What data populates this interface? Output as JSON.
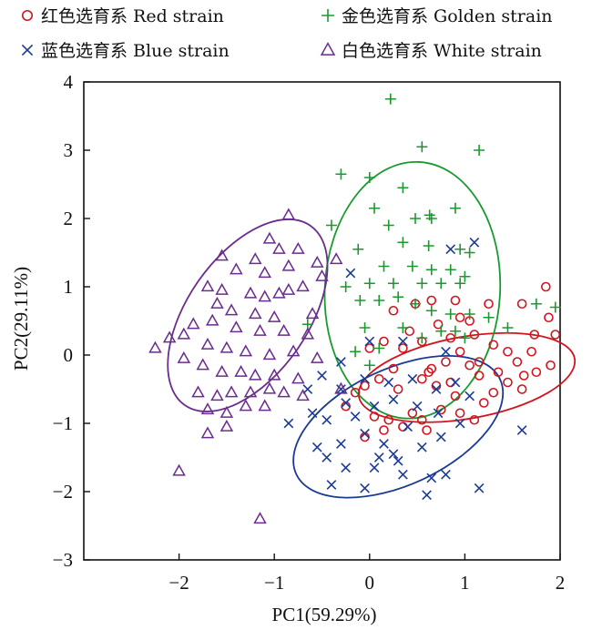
{
  "chart_data": {
    "type": "scatter",
    "xlabel": "PC1(59.29%)",
    "ylabel": "PC2(29.11%)",
    "xlim": [
      -3.0,
      2.0
    ],
    "ylim": [
      -3,
      4
    ],
    "x_ticks": [
      "−2",
      "−1",
      "0",
      "1",
      "2"
    ],
    "x_tick_values": [
      -2,
      -1,
      0,
      1,
      2
    ],
    "y_ticks": [
      "−3",
      "−2",
      "−1",
      "0",
      "1",
      "2",
      "3",
      "4"
    ],
    "y_tick_values": [
      -3,
      -2,
      -1,
      0,
      1,
      2,
      3,
      4
    ],
    "grid": false,
    "legend_position": "top",
    "series": [
      {
        "name": "红色选育系 Red strain",
        "marker": "circle",
        "color": "#d2141e",
        "ellipse": {
          "cx": 1.02,
          "cy": -0.33,
          "rx": 1.15,
          "ry": 0.6,
          "angle_deg": 10
        },
        "points": [
          [
            1.85,
            1.0
          ],
          [
            1.95,
            0.3
          ],
          [
            1.6,
            0.75
          ],
          [
            1.73,
            0.3
          ],
          [
            1.62,
            -0.3
          ],
          [
            1.25,
            0.75
          ],
          [
            0.9,
            0.8
          ],
          [
            0.95,
            0.55
          ],
          [
            1.05,
            0.5
          ],
          [
            0.72,
            0.45
          ],
          [
            0.65,
            0.8
          ],
          [
            0.48,
            0.75
          ],
          [
            0.42,
            0.35
          ],
          [
            0.25,
            0.65
          ],
          [
            0.15,
            0.2
          ],
          [
            0.35,
            0.1
          ],
          [
            0.55,
            0.2
          ],
          [
            0.85,
            0.25
          ],
          [
            1.1,
            0.3
          ],
          [
            1.3,
            0.15
          ],
          [
            1.45,
            0.05
          ],
          [
            1.55,
            -0.1
          ],
          [
            1.75,
            -0.25
          ],
          [
            1.9,
            -0.15
          ],
          [
            1.7,
            0.05
          ],
          [
            0.95,
            0.05
          ],
          [
            0.8,
            -0.1
          ],
          [
            0.65,
            -0.2
          ],
          [
            1.05,
            -0.15
          ],
          [
            1.15,
            -0.3
          ],
          [
            1.35,
            -0.25
          ],
          [
            1.45,
            -0.4
          ],
          [
            1.3,
            -0.55
          ],
          [
            1.2,
            -0.7
          ],
          [
            0.9,
            -0.6
          ],
          [
            0.7,
            -0.45
          ],
          [
            0.55,
            -0.35
          ],
          [
            0.3,
            -0.5
          ],
          [
            0.1,
            -0.35
          ],
          [
            -0.05,
            -0.45
          ],
          [
            -0.15,
            -0.55
          ],
          [
            -0.25,
            -0.75
          ],
          [
            0.05,
            -0.9
          ],
          [
            0.2,
            -0.95
          ],
          [
            0.35,
            -1.05
          ],
          [
            0.55,
            -0.95
          ],
          [
            0.75,
            -0.8
          ],
          [
            0.95,
            -0.85
          ],
          [
            1.1,
            -0.95
          ],
          [
            -0.05,
            -1.2
          ],
          [
            0.15,
            -1.1
          ],
          [
            0.62,
            -0.25
          ],
          [
            1.15,
            -0.1
          ],
          [
            0.45,
            -0.85
          ],
          [
            0.85,
            -0.4
          ],
          [
            1.88,
            0.55
          ],
          [
            0.0,
            0.1
          ],
          [
            0.25,
            -0.2
          ],
          [
            0.6,
            -1.1
          ],
          [
            1.6,
            -0.5
          ]
        ]
      },
      {
        "name": "金色选育系 Golden strain",
        "marker": "plus",
        "color": "#1a9a2e",
        "ellipse": {
          "cx": 0.45,
          "cy": 0.95,
          "rx": 0.92,
          "ry": 1.88,
          "angle_deg": -3
        },
        "points": [
          [
            0.22,
            3.75
          ],
          [
            0.55,
            3.05
          ],
          [
            1.15,
            3.0
          ],
          [
            -0.3,
            2.65
          ],
          [
            0.0,
            2.6
          ],
          [
            0.35,
            2.45
          ],
          [
            0.05,
            2.15
          ],
          [
            0.63,
            2.05
          ],
          [
            0.9,
            2.15
          ],
          [
            0.65,
            2.0
          ],
          [
            0.48,
            2.0
          ],
          [
            -0.4,
            1.9
          ],
          [
            0.2,
            1.9
          ],
          [
            0.35,
            1.65
          ],
          [
            0.62,
            1.6
          ],
          [
            0.95,
            1.55
          ],
          [
            1.05,
            1.5
          ],
          [
            -0.12,
            1.55
          ],
          [
            0.15,
            1.3
          ],
          [
            0.45,
            1.3
          ],
          [
            0.65,
            1.25
          ],
          [
            0.85,
            1.25
          ],
          [
            1.0,
            1.15
          ],
          [
            -0.25,
            1.0
          ],
          [
            0.0,
            1.05
          ],
          [
            0.25,
            1.05
          ],
          [
            0.55,
            1.05
          ],
          [
            0.75,
            1.05
          ],
          [
            0.95,
            1.05
          ],
          [
            -0.1,
            0.8
          ],
          [
            0.1,
            0.8
          ],
          [
            0.3,
            0.85
          ],
          [
            0.48,
            0.75
          ],
          [
            0.65,
            0.65
          ],
          [
            0.85,
            0.6
          ],
          [
            1.05,
            0.6
          ],
          [
            1.25,
            0.55
          ],
          [
            1.95,
            0.7
          ],
          [
            -0.65,
            0.45
          ],
          [
            -0.05,
            0.4
          ],
          [
            0.35,
            0.4
          ],
          [
            0.75,
            0.35
          ],
          [
            0.55,
            0.25
          ],
          [
            0.1,
            0.1
          ],
          [
            0.0,
            -0.15
          ],
          [
            -0.15,
            0.05
          ],
          [
            1.45,
            0.4
          ],
          [
            1.75,
            0.75
          ],
          [
            0.9,
            0.35
          ],
          [
            1.0,
            0.25
          ]
        ]
      },
      {
        "name": "蓝色选育系 Blue strain",
        "marker": "cross",
        "color": "#1a3a95",
        "ellipse": {
          "cx": 0.3,
          "cy": -1.05,
          "rx": 1.18,
          "ry": 0.85,
          "angle_deg": 25
        },
        "points": [
          [
            1.1,
            1.65
          ],
          [
            0.85,
            1.55
          ],
          [
            -0.2,
            1.2
          ],
          [
            0.0,
            0.2
          ],
          [
            0.35,
            0.2
          ],
          [
            0.8,
            0.05
          ],
          [
            -0.3,
            -0.1
          ],
          [
            -0.5,
            -0.3
          ],
          [
            -0.3,
            -0.5
          ],
          [
            -0.05,
            -0.35
          ],
          [
            0.2,
            -0.4
          ],
          [
            0.45,
            -0.35
          ],
          [
            0.7,
            -0.5
          ],
          [
            0.9,
            -0.4
          ],
          [
            1.05,
            -0.6
          ],
          [
            -0.85,
            -1.0
          ],
          [
            -0.6,
            -0.85
          ],
          [
            -0.45,
            -0.95
          ],
          [
            -0.25,
            -0.7
          ],
          [
            -0.15,
            -0.9
          ],
          [
            0.05,
            -0.75
          ],
          [
            0.25,
            -0.65
          ],
          [
            0.5,
            -0.75
          ],
          [
            0.72,
            -0.85
          ],
          [
            0.95,
            -1.0
          ],
          [
            -0.55,
            -1.35
          ],
          [
            -0.3,
            -1.3
          ],
          [
            -0.05,
            -1.15
          ],
          [
            0.15,
            -1.3
          ],
          [
            0.25,
            -1.45
          ],
          [
            0.3,
            -1.55
          ],
          [
            0.55,
            -1.35
          ],
          [
            0.75,
            -1.2
          ],
          [
            -0.45,
            -1.5
          ],
          [
            -0.25,
            -1.65
          ],
          [
            0.05,
            -1.65
          ],
          [
            0.35,
            -1.75
          ],
          [
            0.65,
            -1.8
          ],
          [
            0.8,
            -1.75
          ],
          [
            -0.4,
            -1.9
          ],
          [
            -0.05,
            -1.95
          ],
          [
            0.6,
            -2.05
          ],
          [
            1.15,
            -1.95
          ],
          [
            1.6,
            -1.1
          ],
          [
            0.4,
            -1.05
          ],
          [
            0.1,
            -1.5
          ],
          [
            -0.65,
            -0.5
          ]
        ]
      },
      {
        "name": "白色选育系 White strain",
        "marker": "triangle",
        "color": "#6a2c8e",
        "ellipse": {
          "cx": -1.28,
          "cy": 0.58,
          "rx": 1.15,
          "ry": 0.88,
          "angle_deg": 55
        },
        "points": [
          [
            -0.85,
            2.05
          ],
          [
            -1.05,
            1.7
          ],
          [
            -0.95,
            1.55
          ],
          [
            -0.55,
            1.35
          ],
          [
            -1.55,
            1.45
          ],
          [
            -1.2,
            1.4
          ],
          [
            -0.35,
            1.4
          ],
          [
            -0.75,
            1.55
          ],
          [
            -1.4,
            1.25
          ],
          [
            -1.1,
            1.2
          ],
          [
            -0.85,
            1.3
          ],
          [
            -0.5,
            1.15
          ],
          [
            -1.7,
            1.0
          ],
          [
            -1.55,
            0.95
          ],
          [
            -1.25,
            0.9
          ],
          [
            -1.1,
            0.85
          ],
          [
            -0.95,
            0.9
          ],
          [
            -0.7,
            1.0
          ],
          [
            -0.85,
            0.95
          ],
          [
            -1.6,
            0.75
          ],
          [
            -1.45,
            0.65
          ],
          [
            -1.2,
            0.6
          ],
          [
            -1.0,
            0.55
          ],
          [
            -0.6,
            0.6
          ],
          [
            -1.85,
            0.45
          ],
          [
            -1.65,
            0.5
          ],
          [
            -1.4,
            0.4
          ],
          [
            -1.15,
            0.35
          ],
          [
            -0.9,
            0.35
          ],
          [
            -0.65,
            0.3
          ],
          [
            -2.1,
            0.25
          ],
          [
            -1.95,
            0.3
          ],
          [
            -1.7,
            0.15
          ],
          [
            -1.5,
            0.1
          ],
          [
            -1.3,
            0.05
          ],
          [
            -1.05,
            0.0
          ],
          [
            -0.8,
            0.05
          ],
          [
            -0.55,
            -0.05
          ],
          [
            -1.95,
            -0.05
          ],
          [
            -1.75,
            -0.15
          ],
          [
            -1.55,
            -0.25
          ],
          [
            -1.35,
            -0.25
          ],
          [
            -1.2,
            -0.3
          ],
          [
            -1.0,
            -0.3
          ],
          [
            -0.75,
            -0.35
          ],
          [
            -1.8,
            -0.55
          ],
          [
            -1.6,
            -0.6
          ],
          [
            -1.45,
            -0.55
          ],
          [
            -1.25,
            -0.55
          ],
          [
            -1.05,
            -0.5
          ],
          [
            -0.9,
            -0.55
          ],
          [
            -0.7,
            -0.6
          ],
          [
            -1.7,
            -0.8
          ],
          [
            -1.5,
            -0.85
          ],
          [
            -1.3,
            -0.75
          ],
          [
            -1.1,
            -0.75
          ],
          [
            -1.5,
            -1.05
          ],
          [
            -1.7,
            -1.15
          ],
          [
            -2.0,
            -1.7
          ],
          [
            -1.15,
            -2.4
          ],
          [
            -2.25,
            0.1
          ],
          [
            -0.3,
            -0.5
          ]
        ]
      }
    ]
  }
}
